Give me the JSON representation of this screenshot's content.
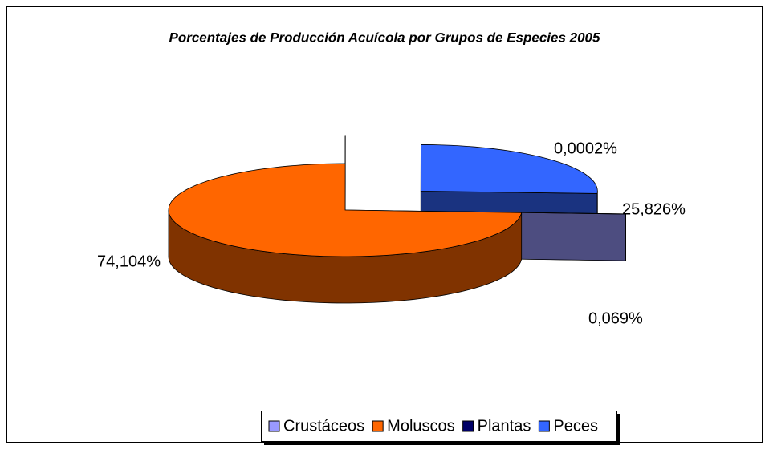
{
  "chart_data": {
    "type": "pie",
    "title": "Porcentajes de Producción Acuícola por Grupos de Especies 2005",
    "categories": [
      "Crustáceos",
      "Moluscos",
      "Plantas",
      "Peces"
    ],
    "values": [
      0.069,
      74.104,
      0.0002,
      25.826
    ],
    "value_labels": [
      "0,069%",
      "74,104%",
      "0,0002%",
      "25,826%"
    ],
    "colors": [
      "#9999ff",
      "#ff6600",
      "#000066",
      "#3366ff"
    ],
    "legend": "bottom"
  }
}
